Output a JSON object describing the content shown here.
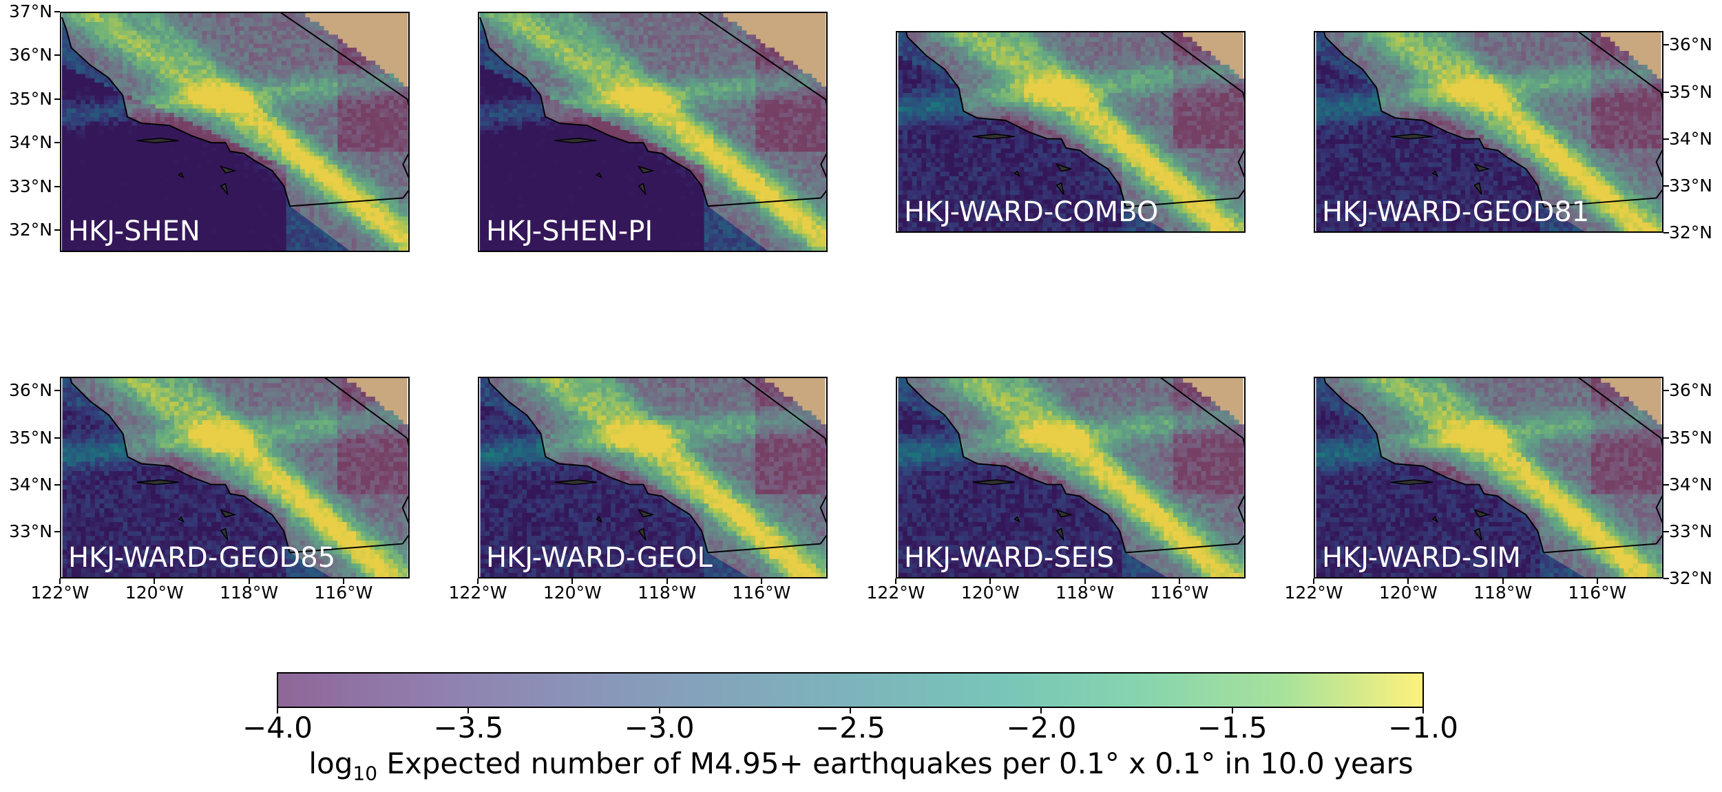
{
  "figure": {
    "panels": [
      {
        "id": "p1",
        "label": "HKJ-SHEN",
        "extent": "large",
        "row": 0,
        "col": 0
      },
      {
        "id": "p2",
        "label": "HKJ-SHEN-PI",
        "extent": "large",
        "row": 0,
        "col": 1
      },
      {
        "id": "p3",
        "label": "HKJ-WARD-COMBO",
        "extent": "small",
        "row": 0,
        "col": 2
      },
      {
        "id": "p4",
        "label": "HKJ-WARD-GEOD81",
        "extent": "small",
        "row": 0,
        "col": 3
      },
      {
        "id": "p5",
        "label": "HKJ-WARD-GEOD85",
        "extent": "small",
        "row": 1,
        "col": 0
      },
      {
        "id": "p6",
        "label": "HKJ-WARD-GEOL",
        "extent": "small",
        "row": 1,
        "col": 1
      },
      {
        "id": "p7",
        "label": "HKJ-WARD-SEIS",
        "extent": "small",
        "row": 1,
        "col": 2
      },
      {
        "id": "p8",
        "label": "HKJ-WARD-SIM",
        "extent": "small",
        "row": 1,
        "col": 3
      }
    ],
    "axes": {
      "row0_left_lat_ticks": [
        "37°N",
        "36°N",
        "35°N",
        "34°N",
        "33°N",
        "32°N"
      ],
      "row0_right_lat_ticks": [
        "36°N",
        "35°N",
        "34°N",
        "33°N",
        "32°N"
      ],
      "row1_left_lat_ticks": [
        "36°N",
        "35°N",
        "34°N",
        "33°N"
      ],
      "row1_right_lat_ticks": [
        "36°N",
        "35°N",
        "34°N",
        "33°N",
        "32°N"
      ],
      "lon_ticks": [
        "122°W",
        "120°W",
        "118°W",
        "116°W"
      ]
    },
    "colorbar": {
      "colormap": "viridis",
      "alpha": 0.6,
      "min": -4.0,
      "max": -1.0,
      "tick_labels": [
        "−4.0",
        "−3.5",
        "−3.0",
        "−2.5",
        "−2.0",
        "−1.5",
        "−1.0"
      ],
      "label_log": "log",
      "label_sub": "10",
      "label_rest": " Expected number of M4.95+ earthquakes per 0.1° x 0.1° in 10.0 years"
    },
    "colors": {
      "ocean": "#1a3d63",
      "desert": "#c9a77f",
      "viridis_low": "#440154",
      "viridis_mid": "#21918c",
      "viridis_high": "#fde725"
    }
  }
}
